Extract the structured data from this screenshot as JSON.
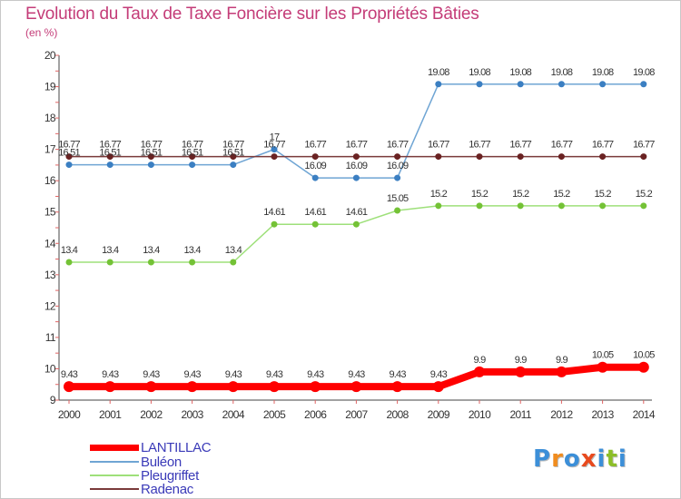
{
  "title": "Evolution du Taux de Taxe Foncière sur les Propriétés Bâties",
  "unit": "(en %)",
  "colors": {
    "title": "#c43c78",
    "axis": "#444444",
    "grid_tick": "#e06464",
    "legend_text": "#3a3ab8"
  },
  "logo": {
    "text": "Proxiti",
    "letters": [
      "P",
      "r",
      "o",
      "x",
      "i",
      "t",
      "i"
    ],
    "letter_colors": [
      "#3c8fd8",
      "#f08c1e",
      "#3c8fd8",
      "#e84a1e",
      "#3c8fd8",
      "#8cbe28",
      "#3c8fd8"
    ]
  },
  "chart_data": {
    "type": "line",
    "title": "Evolution du Taux de Taxe Foncière sur les Propriétés Bâties",
    "ylabel": "(en %)",
    "xlabel": "",
    "x": [
      "2000",
      "2001",
      "2002",
      "2003",
      "2004",
      "2005",
      "2006",
      "2007",
      "2008",
      "2009",
      "2010",
      "2011",
      "2012",
      "2013",
      "2014"
    ],
    "ylim": [
      9,
      20
    ],
    "yticks": [
      9,
      10,
      11,
      12,
      13,
      14,
      15,
      16,
      17,
      18,
      19,
      20
    ],
    "grid": false,
    "legend_position": "bottom-left",
    "series": [
      {
        "name": "LANTILLAC",
        "color": "#ff0000",
        "marker_color": "#ff0000",
        "values": [
          9.43,
          9.43,
          9.43,
          9.43,
          9.43,
          9.43,
          9.43,
          9.43,
          9.43,
          9.43,
          9.9,
          9.9,
          9.9,
          10.05,
          10.05
        ],
        "labels": [
          "9.43",
          "9.43",
          "9.43",
          "9.43",
          "9.43",
          "9.43",
          "9.43",
          "9.43",
          "9.43",
          "9.43",
          "9.9",
          "9.9",
          "9.9",
          "10.05",
          "10.05"
        ]
      },
      {
        "name": "Buléon",
        "color": "#6fa5d4",
        "marker_color": "#3b7fc2",
        "values": [
          16.51,
          16.51,
          16.51,
          16.51,
          16.51,
          17,
          16.09,
          16.09,
          16.09,
          19.08,
          19.08,
          19.08,
          19.08,
          19.08,
          19.08
        ],
        "labels": [
          "16.51",
          "16.51",
          "16.51",
          "16.51",
          "16.51",
          "17",
          "16.09",
          "16.09",
          "16.09",
          "19.08",
          "19.08",
          "19.08",
          "19.08",
          "19.08",
          "19.08"
        ]
      },
      {
        "name": "Pleugriffet",
        "color": "#9ee07a",
        "marker_color": "#74c236",
        "values": [
          13.4,
          13.4,
          13.4,
          13.4,
          13.4,
          14.61,
          14.61,
          14.61,
          15.05,
          15.2,
          15.2,
          15.2,
          15.2,
          15.2,
          15.2
        ],
        "labels": [
          "13.4",
          "13.4",
          "13.4",
          "13.4",
          "13.4",
          "14.61",
          "14.61",
          "14.61",
          "15.05",
          "15.2",
          "15.2",
          "15.2",
          "15.2",
          "15.2",
          "15.2"
        ]
      },
      {
        "name": "Radenac",
        "color": "#7a3a3a",
        "marker_color": "#6a2222",
        "values": [
          16.77,
          16.77,
          16.77,
          16.77,
          16.77,
          16.77,
          16.77,
          16.77,
          16.77,
          16.77,
          16.77,
          16.77,
          16.77,
          16.77,
          16.77
        ],
        "labels": [
          "16.77",
          "16.77",
          "16.77",
          "16.77",
          "16.77",
          "16.77",
          "16.77",
          "16.77",
          "16.77",
          "16.77",
          "16.77",
          "16.77",
          "16.77",
          "16.77",
          "16.77"
        ]
      }
    ]
  }
}
